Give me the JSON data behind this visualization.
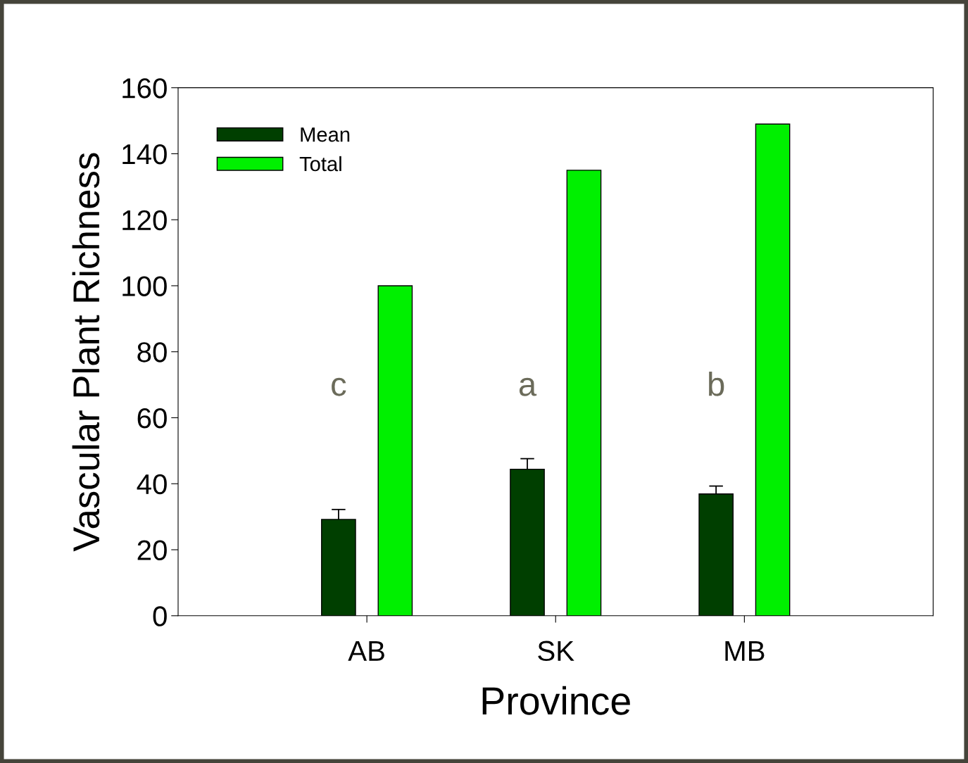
{
  "chart_data": {
    "type": "bar",
    "xlabel": "Province",
    "ylabel": "Vascular Plant Richness",
    "categories": [
      "AB",
      "SK",
      "MB"
    ],
    "series": [
      {
        "name": "Mean",
        "color": "#003f00",
        "values": [
          29.2,
          44.4,
          36.9
        ],
        "errors": [
          3.0,
          3.2,
          2.4
        ]
      },
      {
        "name": "Total",
        "color": "#00f000",
        "values": [
          100,
          135,
          149
        ]
      }
    ],
    "ylim": [
      0,
      160
    ],
    "yticks": [
      0,
      20,
      40,
      60,
      80,
      100,
      120,
      140,
      160
    ],
    "grid": false,
    "legend": "top left",
    "annotations": [
      "c",
      "a",
      "b"
    ]
  }
}
